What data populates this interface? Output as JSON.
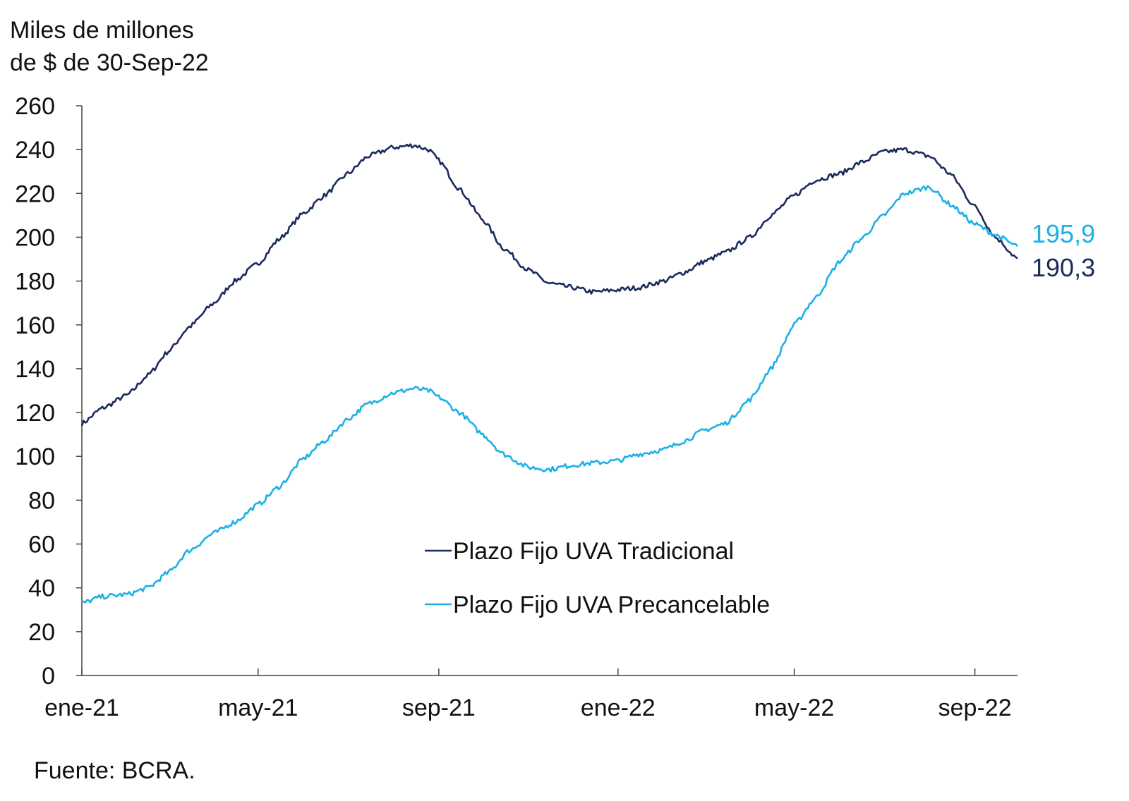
{
  "chart_data": {
    "type": "line",
    "ylabel_line1": "Miles de millones",
    "ylabel_line2": "de $ de 30-Sep-22",
    "source": "Fuente: BCRA.",
    "ylim": [
      0,
      260
    ],
    "y_ticks": [
      0,
      20,
      40,
      60,
      80,
      100,
      120,
      140,
      160,
      180,
      200,
      220,
      240,
      260
    ],
    "x_tick_labels": [
      "ene-21",
      "may-21",
      "sep-21",
      "ene-22",
      "may-22",
      "sep-22"
    ],
    "x_tick_dates": [
      "2021-01-01",
      "2021-05-01",
      "2021-09-01",
      "2022-01-01",
      "2022-05-01",
      "2022-09-01"
    ],
    "xlim": [
      "2021-01-01",
      "2022-09-30"
    ],
    "legend_position": "center-bottom",
    "series": [
      {
        "name": "Plazo Fijo UVA Tradicional",
        "color": "#1a2a5e",
        "end_label": "190,3",
        "points": [
          [
            "2021-01-01",
            115
          ],
          [
            "2021-01-15",
            122
          ],
          [
            "2021-02-01",
            128
          ],
          [
            "2021-02-15",
            137
          ],
          [
            "2021-03-01",
            148
          ],
          [
            "2021-03-15",
            159
          ],
          [
            "2021-04-01",
            170
          ],
          [
            "2021-04-15",
            180
          ],
          [
            "2021-05-01",
            188
          ],
          [
            "2021-05-15",
            199
          ],
          [
            "2021-06-01",
            211
          ],
          [
            "2021-06-15",
            219
          ],
          [
            "2021-07-01",
            229
          ],
          [
            "2021-07-15",
            237
          ],
          [
            "2021-08-01",
            241
          ],
          [
            "2021-08-15",
            242
          ],
          [
            "2021-08-25",
            240
          ],
          [
            "2021-09-01",
            235
          ],
          [
            "2021-09-15",
            222
          ],
          [
            "2021-10-01",
            208
          ],
          [
            "2021-10-15",
            195
          ],
          [
            "2021-11-01",
            185
          ],
          [
            "2021-11-15",
            179
          ],
          [
            "2021-12-01",
            177
          ],
          [
            "2021-12-15",
            175
          ],
          [
            "2022-01-01",
            176
          ],
          [
            "2022-01-15",
            177
          ],
          [
            "2022-02-01",
            180
          ],
          [
            "2022-02-15",
            184
          ],
          [
            "2022-03-01",
            189
          ],
          [
            "2022-03-15",
            193
          ],
          [
            "2022-04-01",
            200
          ],
          [
            "2022-04-15",
            210
          ],
          [
            "2022-05-01",
            219
          ],
          [
            "2022-05-15",
            226
          ],
          [
            "2022-06-01",
            229
          ],
          [
            "2022-06-15",
            234
          ],
          [
            "2022-07-01",
            239
          ],
          [
            "2022-07-15",
            240
          ],
          [
            "2022-08-01",
            237
          ],
          [
            "2022-08-15",
            229
          ],
          [
            "2022-09-01",
            214
          ],
          [
            "2022-09-15",
            200
          ],
          [
            "2022-09-30",
            190.3
          ]
        ]
      },
      {
        "name": "Plazo Fijo UVA Precancelable",
        "color": "#1bb0e6",
        "end_label": "195,9",
        "points": [
          [
            "2021-01-01",
            33
          ],
          [
            "2021-01-15",
            36
          ],
          [
            "2021-02-01",
            37
          ],
          [
            "2021-02-15",
            40
          ],
          [
            "2021-03-01",
            47
          ],
          [
            "2021-03-15",
            57
          ],
          [
            "2021-04-01",
            65
          ],
          [
            "2021-04-15",
            70
          ],
          [
            "2021-05-01",
            78
          ],
          [
            "2021-05-15",
            86
          ],
          [
            "2021-06-01",
            99
          ],
          [
            "2021-06-15",
            107
          ],
          [
            "2021-07-01",
            117
          ],
          [
            "2021-07-15",
            124
          ],
          [
            "2021-08-01",
            129
          ],
          [
            "2021-08-15",
            131
          ],
          [
            "2021-08-25",
            130
          ],
          [
            "2021-09-01",
            127
          ],
          [
            "2021-09-15",
            120
          ],
          [
            "2021-10-01",
            110
          ],
          [
            "2021-10-15",
            101
          ],
          [
            "2021-11-01",
            95
          ],
          [
            "2021-11-15",
            94
          ],
          [
            "2021-12-01",
            96
          ],
          [
            "2021-12-15",
            97
          ],
          [
            "2022-01-01",
            98
          ],
          [
            "2022-01-15",
            101
          ],
          [
            "2022-02-01",
            103
          ],
          [
            "2022-02-15",
            107
          ],
          [
            "2022-03-01",
            112
          ],
          [
            "2022-03-15",
            115
          ],
          [
            "2022-04-01",
            126
          ],
          [
            "2022-04-15",
            140
          ],
          [
            "2022-05-01",
            160
          ],
          [
            "2022-05-15",
            172
          ],
          [
            "2022-06-01",
            189
          ],
          [
            "2022-06-15",
            199
          ],
          [
            "2022-07-01",
            210
          ],
          [
            "2022-07-15",
            220
          ],
          [
            "2022-08-01",
            223
          ],
          [
            "2022-08-15",
            215
          ],
          [
            "2022-09-01",
            206
          ],
          [
            "2022-09-15",
            201
          ],
          [
            "2022-09-30",
            195.9
          ]
        ]
      }
    ]
  }
}
